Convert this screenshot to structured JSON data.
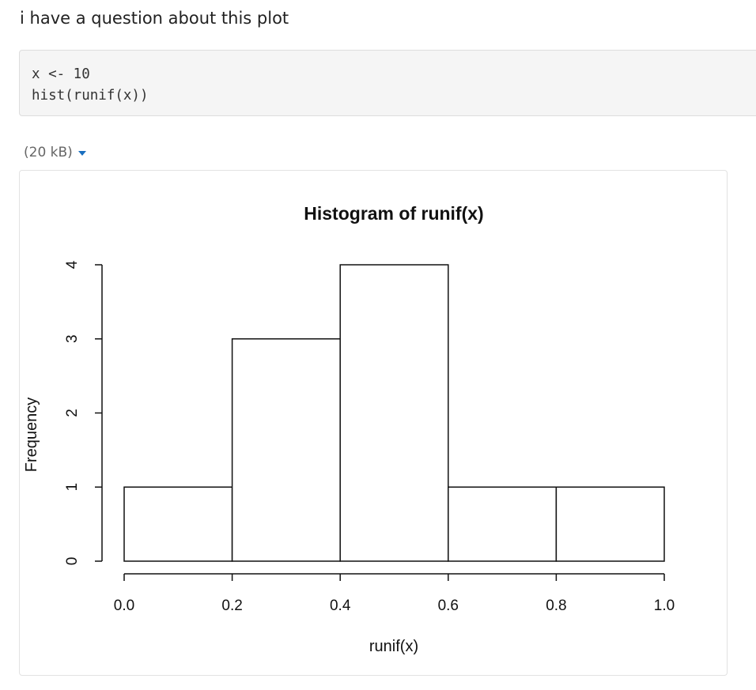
{
  "question": "i have a question about this plot",
  "code": {
    "lines": [
      "x <- 10",
      "hist(runif(x))"
    ]
  },
  "attachment": {
    "size_label": "(20 kB)"
  },
  "chart_data": {
    "type": "bar",
    "title": "Histogram of runif(x)",
    "xlabel": "runif(x)",
    "ylabel": "Frequency",
    "bins": [
      {
        "x0": 0.0,
        "x1": 0.2,
        "count": 1
      },
      {
        "x0": 0.2,
        "x1": 0.4,
        "count": 3
      },
      {
        "x0": 0.4,
        "x1": 0.6,
        "count": 4
      },
      {
        "x0": 0.6,
        "x1": 0.8,
        "count": 1
      },
      {
        "x0": 0.8,
        "x1": 1.0,
        "count": 1
      }
    ],
    "xlim": [
      0.0,
      1.0
    ],
    "ylim": [
      0,
      4
    ],
    "x_ticks": [
      "0.0",
      "0.2",
      "0.4",
      "0.6",
      "0.8",
      "1.0"
    ],
    "y_ticks": [
      "0",
      "1",
      "2",
      "3",
      "4"
    ],
    "grid": false
  }
}
